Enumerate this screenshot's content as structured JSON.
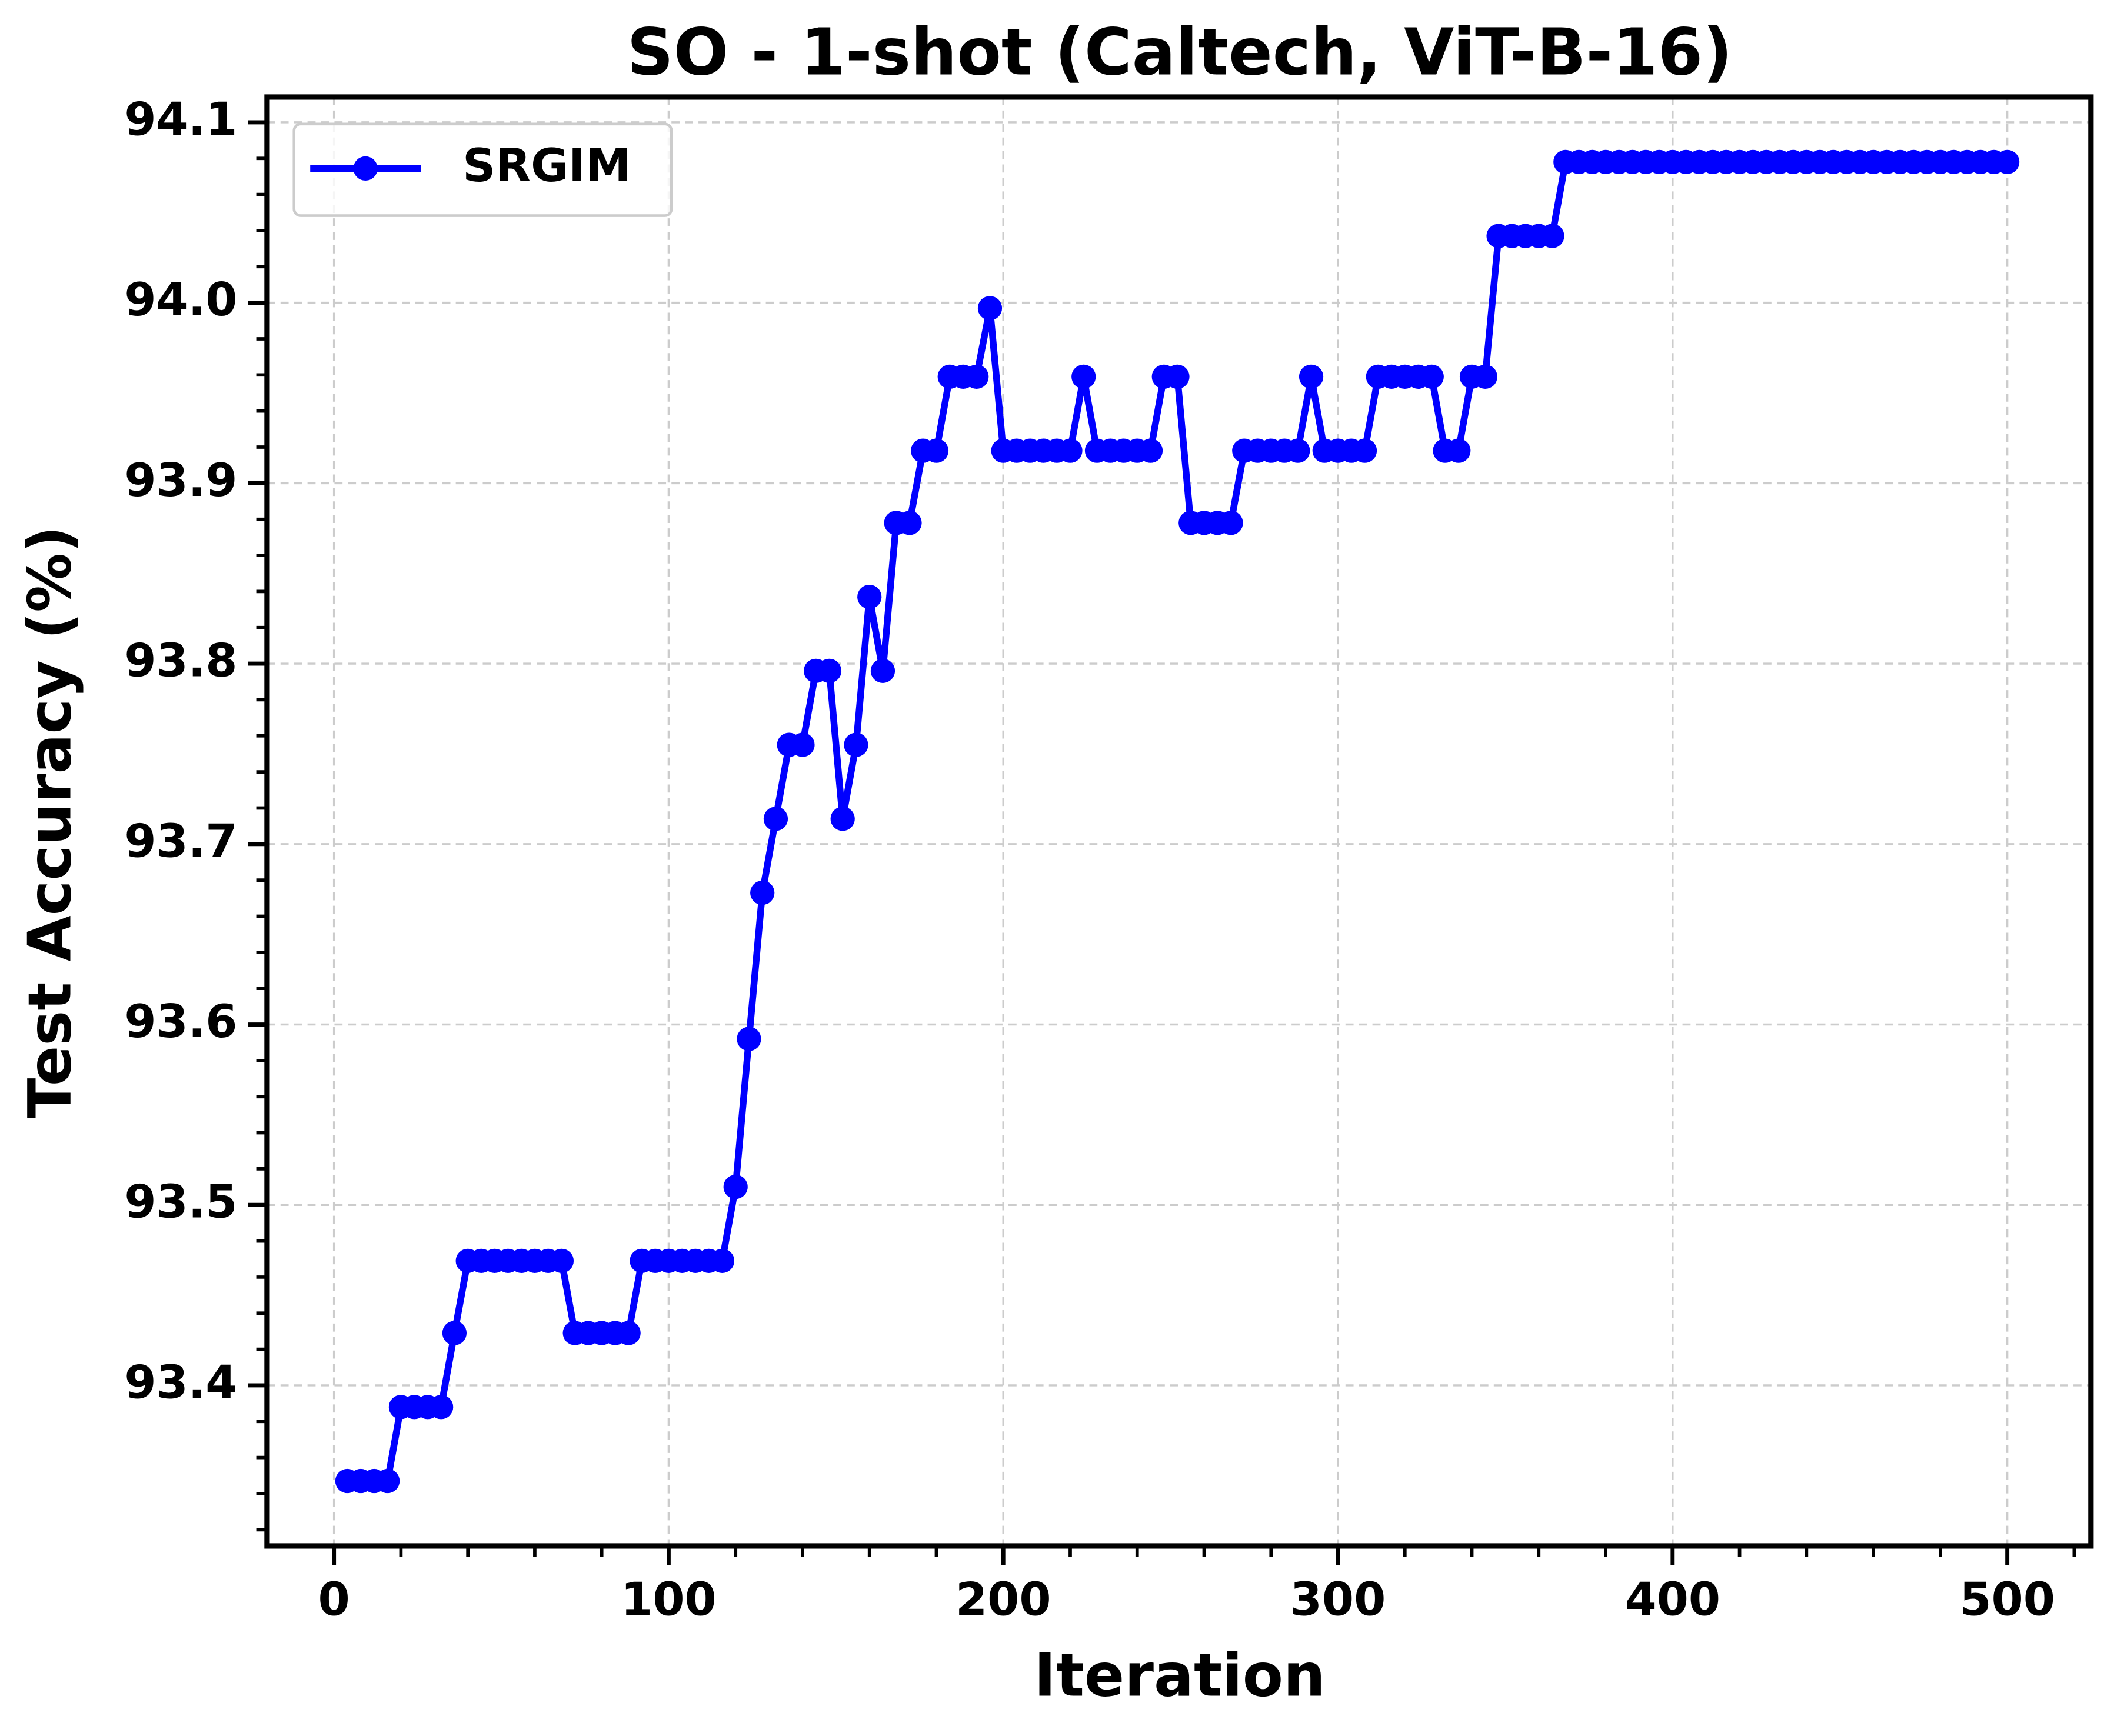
{
  "chart_data": {
    "type": "line",
    "title": "SO - 1-shot (Caltech, ViT-B-16)",
    "x_label": "Iteration",
    "y_label": "Test Accuracy (%)",
    "x": [
      4,
      8,
      12,
      16,
      20,
      24,
      28,
      32,
      36,
      40,
      44,
      48,
      52,
      56,
      60,
      64,
      68,
      72,
      76,
      80,
      84,
      88,
      92,
      96,
      100,
      104,
      108,
      112,
      116,
      120,
      124,
      128,
      132,
      136,
      140,
      144,
      148,
      152,
      156,
      160,
      164,
      168,
      172,
      176,
      180,
      184,
      188,
      192,
      196,
      200,
      204,
      208,
      212,
      216,
      220,
      224,
      228,
      232,
      236,
      240,
      244,
      248,
      252,
      256,
      260,
      264,
      268,
      272,
      276,
      280,
      284,
      288,
      292,
      296,
      300,
      304,
      308,
      312,
      316,
      320,
      324,
      328,
      332,
      336,
      340,
      344,
      348,
      352,
      356,
      360,
      364,
      368,
      372,
      376,
      380,
      384,
      388,
      392,
      396,
      400,
      404,
      408,
      412,
      416,
      420,
      424,
      428,
      432,
      436,
      440,
      444,
      448,
      452,
      456,
      460,
      464,
      468,
      472,
      476,
      480,
      484,
      488,
      492,
      496,
      500
    ],
    "series": [
      {
        "name": "SRGIM",
        "color": "#0000ff",
        "values": [
          93.347,
          93.347,
          93.347,
          93.347,
          93.388,
          93.388,
          93.388,
          93.388,
          93.429,
          93.469,
          93.469,
          93.469,
          93.469,
          93.469,
          93.469,
          93.469,
          93.469,
          93.429,
          93.429,
          93.429,
          93.429,
          93.429,
          93.469,
          93.469,
          93.469,
          93.469,
          93.469,
          93.469,
          93.469,
          93.51,
          93.592,
          93.673,
          93.714,
          93.755,
          93.755,
          93.796,
          93.796,
          93.714,
          93.755,
          93.837,
          93.796,
          93.878,
          93.878,
          93.918,
          93.918,
          93.959,
          93.959,
          93.959,
          93.997,
          93.918,
          93.918,
          93.918,
          93.918,
          93.918,
          93.918,
          93.959,
          93.918,
          93.918,
          93.918,
          93.918,
          93.918,
          93.959,
          93.959,
          93.878,
          93.878,
          93.878,
          93.878,
          93.918,
          93.918,
          93.918,
          93.918,
          93.918,
          93.959,
          93.918,
          93.918,
          93.918,
          93.918,
          93.959,
          93.959,
          93.959,
          93.959,
          93.959,
          93.918,
          93.918,
          93.959,
          93.959,
          94.037,
          94.037,
          94.037,
          94.037,
          94.037,
          94.078,
          94.078,
          94.078,
          94.078,
          94.078,
          94.078,
          94.078,
          94.078,
          94.078,
          94.078,
          94.078,
          94.078,
          94.078,
          94.078,
          94.078,
          94.078,
          94.078,
          94.078,
          94.078,
          94.078,
          94.078,
          94.078,
          94.078,
          94.078,
          94.078,
          94.078,
          94.078,
          94.078,
          94.078,
          94.078,
          94.078,
          94.078,
          94.078,
          94.078
        ]
      }
    ],
    "xlim": [
      -20,
      525
    ],
    "ylim": [
      93.311,
      94.114
    ],
    "xticks": [
      0,
      100,
      200,
      300,
      400,
      500
    ],
    "yticks": [
      93.4,
      93.5,
      93.6,
      93.7,
      93.8,
      93.9,
      {
        "value": 94,
        "label": "94.0"
      },
      94.1
    ],
    "x_minor_ticks": [
      20,
      40,
      60,
      80,
      120,
      140,
      160,
      180,
      220,
      240,
      260,
      280,
      320,
      340,
      360,
      380,
      420,
      440,
      460,
      480,
      520
    ],
    "y_minor_ticks": [
      93.32,
      93.34,
      93.36,
      93.38,
      93.42,
      93.44,
      93.46,
      93.48,
      93.52,
      93.54,
      93.56,
      93.58,
      93.62,
      93.64,
      93.66,
      93.68,
      93.72,
      93.74,
      93.76,
      93.78,
      93.82,
      93.84,
      93.86,
      93.88,
      93.92,
      93.94,
      93.96,
      93.98,
      94.02,
      94.04,
      94.06,
      94.08
    ],
    "grid": true,
    "legend": "upper left"
  }
}
